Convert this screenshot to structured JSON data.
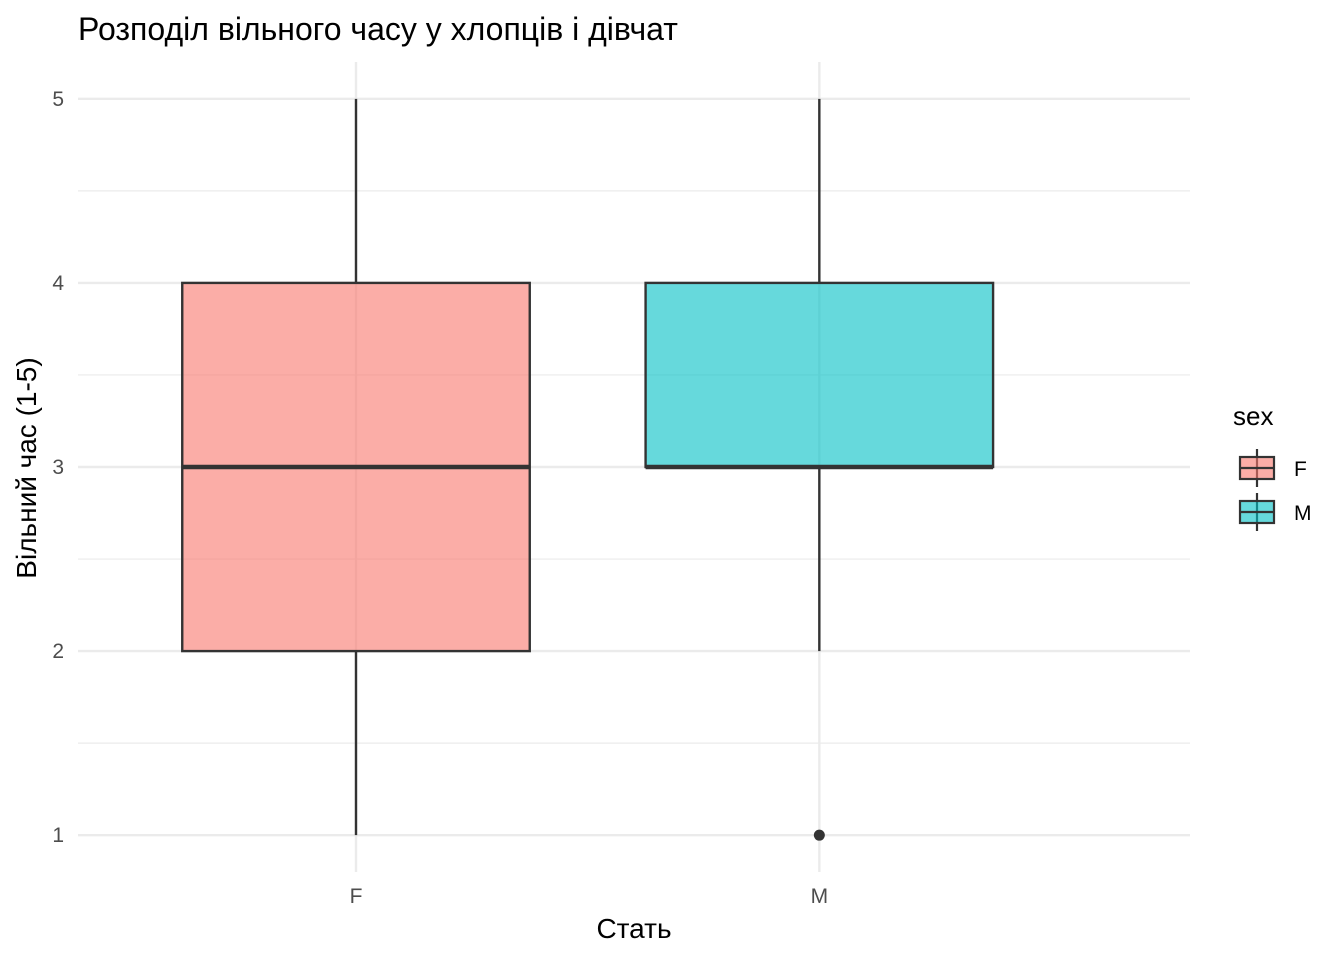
{
  "chart_data": {
    "type": "boxplot",
    "title": "Розподіл вільного часу у хлопців і дівчат",
    "xlabel": "Стать",
    "ylabel": "Вільний час (1-5)",
    "categories": [
      "F",
      "M"
    ],
    "y_ticks": [
      1,
      2,
      3,
      4,
      5
    ],
    "ylim": [
      0.8,
      5.2
    ],
    "grid": true,
    "legend": {
      "title": "sex",
      "position": "right",
      "entries": [
        {
          "label": "F",
          "color": "#F8766D"
        },
        {
          "label": "M",
          "color": "#00BFC4"
        }
      ]
    },
    "series": [
      {
        "category": "F",
        "color": "#F8766D",
        "whisker_low": 1,
        "q1": 2,
        "median": 3,
        "q3": 4,
        "whisker_high": 5,
        "outliers": []
      },
      {
        "category": "M",
        "color": "#00BFC4",
        "whisker_low": 2,
        "q1": 3,
        "median": 3,
        "q3": 4,
        "whisker_high": 5,
        "outliers": [
          1
        ]
      }
    ]
  }
}
